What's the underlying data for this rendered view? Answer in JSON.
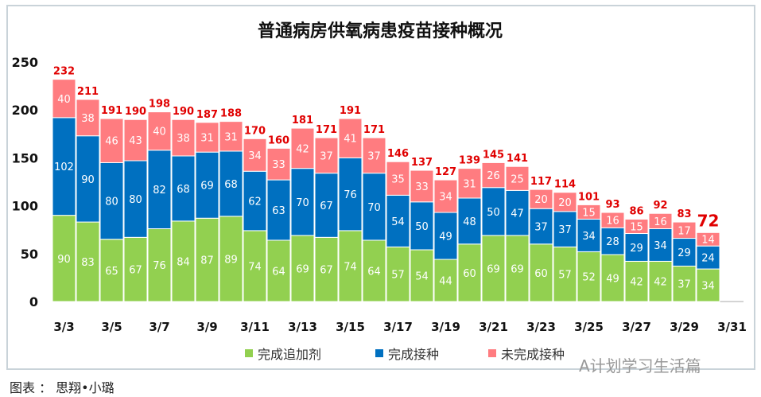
{
  "chart_data": {
    "type": "bar",
    "stacked": true,
    "title": "普通病房供氧病患疫苗接种概况",
    "categories": [
      "3/3",
      "3/4",
      "3/5",
      "3/6",
      "3/7",
      "3/8",
      "3/9",
      "3/10",
      "3/11",
      "3/12",
      "3/13",
      "3/14",
      "3/15",
      "3/16",
      "3/17",
      "3/18",
      "3/19",
      "3/20",
      "3/21",
      "3/22",
      "3/23",
      "3/24",
      "3/25",
      "3/26",
      "3/27",
      "3/28",
      "3/29",
      "3/30"
    ],
    "x_tick_labels": [
      "3/3",
      "3/5",
      "3/7",
      "3/9",
      "3/11",
      "3/13",
      "3/15",
      "3/17",
      "3/19",
      "3/21",
      "3/23",
      "3/25",
      "3/27",
      "3/29",
      "3/31"
    ],
    "ylim": [
      0,
      250
    ],
    "y_ticks": [
      0,
      50,
      100,
      150,
      200,
      250
    ],
    "grid": false,
    "legend": "bottom",
    "series": [
      {
        "name": "完成追加剂",
        "color": "#92d050",
        "values": [
          90,
          83,
          65,
          67,
          76,
          84,
          87,
          89,
          74,
          64,
          69,
          67,
          74,
          64,
          57,
          54,
          44,
          60,
          69,
          69,
          60,
          57,
          52,
          49,
          42,
          42,
          37,
          34
        ]
      },
      {
        "name": "完成接种",
        "color": "#0070c0",
        "values": [
          102,
          90,
          80,
          80,
          82,
          68,
          69,
          68,
          62,
          63,
          70,
          67,
          76,
          70,
          54,
          50,
          49,
          48,
          50,
          47,
          37,
          37,
          34,
          28,
          29,
          34,
          29,
          24
        ]
      },
      {
        "name": "未完成接种",
        "color": "#ff7c80",
        "values": [
          40,
          38,
          46,
          43,
          40,
          38,
          31,
          31,
          34,
          33,
          42,
          37,
          41,
          37,
          35,
          33,
          34,
          31,
          26,
          25,
          20,
          20,
          15,
          16,
          15,
          16,
          17,
          14
        ]
      }
    ],
    "totals": [
      232,
      211,
      191,
      190,
      198,
      190,
      187,
      188,
      170,
      160,
      181,
      171,
      191,
      171,
      146,
      137,
      127,
      139,
      145,
      141,
      117,
      114,
      101,
      93,
      86,
      92,
      83,
      72
    ],
    "total_label_color": "#e00000"
  },
  "caption": "图表 ： 思翔•小璐",
  "watermark": "A计划学习生活篇"
}
